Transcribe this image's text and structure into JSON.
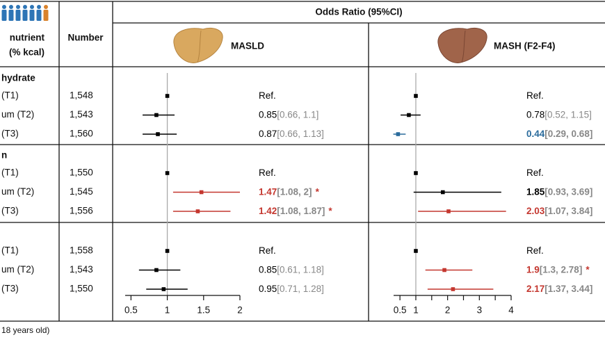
{
  "title": "Odds Ratio (95%CI)",
  "footnote": "18 years old)",
  "table": {
    "header": [
      "nutrient",
      "(% kcal)"
    ],
    "number_header": "Number",
    "groups": [
      {
        "label": "hydrate",
        "rows": [
          [
            "(T1)",
            "1,548"
          ],
          [
            "um (T2)",
            "1,543"
          ],
          [
            "(T3)",
            "1,560"
          ]
        ]
      },
      {
        "label": "n",
        "rows": [
          [
            "(T1)",
            "1,550"
          ],
          [
            "um (T2)",
            "1,545"
          ],
          [
            "(T3)",
            "1,556"
          ]
        ]
      },
      {
        "label": null,
        "rows": [
          [
            "(T1)",
            "1,558"
          ],
          [
            "um (T2)",
            "1,543"
          ],
          [
            "(T3)",
            "1,550"
          ]
        ]
      }
    ]
  },
  "chart_data": [
    {
      "type": "forest",
      "title": "MASLD",
      "values": [
        1,
        0.85,
        0.87,
        1,
        1.47,
        1.42,
        1,
        0.85,
        0.95
      ],
      "lower": [
        null,
        0.66,
        0.66,
        null,
        1.08,
        1.08,
        null,
        0.61,
        0.71
      ],
      "upper": [
        null,
        1.1,
        1.13,
        null,
        2,
        1.87,
        null,
        1.18,
        1.28
      ],
      "value_labels": [
        "Ref.",
        "0.85",
        "0.87",
        "Ref.",
        "1.47",
        "1.42",
        "Ref.",
        "0.85",
        "0.95"
      ],
      "ci_labels": [
        null,
        "[0.66, 1.1]",
        "[0.66, 1.13]",
        null,
        "[1.08, 2]",
        "[1.08, 1.87]",
        null,
        "[0.61, 1.18]",
        "[0.71, 1.28]"
      ],
      "stars": [
        null,
        null,
        null,
        null,
        "*",
        "*",
        null,
        null,
        null
      ],
      "colors": [
        "#000000",
        "#000000",
        "#000000",
        "#000000",
        "#c4372f",
        "#c4372f",
        "#000000",
        "#000000",
        "#000000"
      ],
      "bold": [
        false,
        false,
        false,
        false,
        true,
        true,
        false,
        false,
        false
      ],
      "xlim": [
        0.42,
        2
      ],
      "xticks": [
        0.5,
        1,
        1.5,
        2
      ],
      "minor_xticks": [],
      "ref_line": 1
    },
    {
      "type": "forest",
      "title": "MASH (F2-F4)",
      "values": [
        1,
        0.78,
        0.44,
        1,
        1.85,
        2.03,
        1,
        1.9,
        2.17
      ],
      "lower": [
        null,
        0.52,
        0.29,
        null,
        0.93,
        1.07,
        null,
        1.3,
        1.37
      ],
      "upper": [
        null,
        1.15,
        0.68,
        null,
        3.69,
        3.84,
        null,
        2.78,
        3.44
      ],
      "value_labels": [
        "Ref.",
        "0.78",
        "0.44",
        "Ref.",
        "1.85",
        "2.03",
        "Ref.",
        "1.9",
        "2.17"
      ],
      "ci_labels": [
        null,
        "[0.52, 1.15]",
        "[0.29, 0.68]",
        null,
        "[0.93, 3.69]",
        "[1.07, 3.84]",
        null,
        "[1.3, 2.78]",
        "[1.37, 3.44]"
      ],
      "stars": [
        null,
        null,
        null,
        null,
        null,
        null,
        null,
        "*",
        null
      ],
      "colors": [
        "#000000",
        "#000000",
        "#2a6b9c",
        "#000000",
        "#000000",
        "#c4372f",
        "#000000",
        "#c4372f",
        "#c4372f"
      ],
      "bold": [
        false,
        false,
        true,
        false,
        true,
        true,
        false,
        true,
        true
      ],
      "xlim": [
        0.3,
        4
      ],
      "xticks": [
        0.5,
        1,
        2,
        3,
        4
      ],
      "minor_xticks": [
        1.5,
        2.5,
        3.5
      ],
      "ref_line": 1
    }
  ]
}
